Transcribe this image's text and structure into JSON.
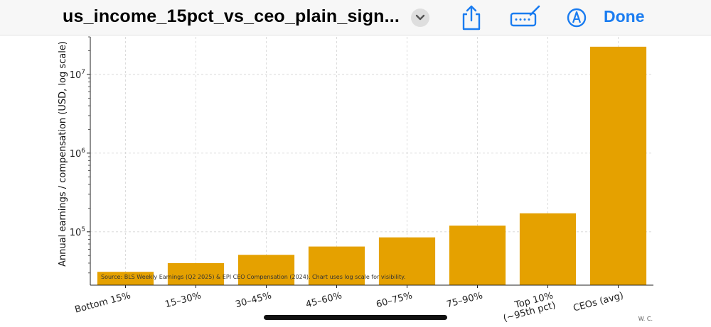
{
  "toolbar": {
    "doc_title": "us_income_15pct_vs_ceo_plain_sign...",
    "chevron_icon": "chevron-down-icon",
    "share_icon": "share-icon",
    "annotate_icon": "markup-keyboard-icon",
    "markup_icon": "pen-circle-icon",
    "done_label": "Done",
    "accent_color": "#1a7cf0"
  },
  "chart_data": {
    "type": "bar",
    "categories": [
      "Bottom 15%",
      "15–30%",
      "30–45%",
      "45–60%",
      "60–75%",
      "75–90%",
      "Top 10%\n(~95th pct)",
      "CEOs (avg)"
    ],
    "values": [
      31000,
      40000,
      51000,
      65000,
      85000,
      120000,
      172000,
      22500000
    ],
    "ylabel": "Annual earnings / compensation (USD, log scale)",
    "yscale": "log",
    "ylim": [
      21000,
      30000000
    ],
    "yticks": [
      {
        "value": 100000,
        "base": "10",
        "exp": "5"
      },
      {
        "value": 1000000,
        "base": "10",
        "exp": "6"
      },
      {
        "value": 10000000,
        "base": "10",
        "exp": "7"
      }
    ],
    "bar_color": "#e5a100",
    "grid": true,
    "source_note": "Source: BLS Weekly Earnings (Q2 2025) & EPI CEO Compensation (2024). Chart uses log scale for visibility.",
    "watermark": "W. C."
  }
}
